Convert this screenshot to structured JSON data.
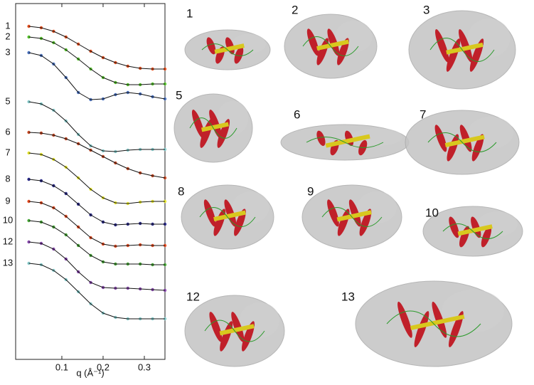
{
  "chart_data": {
    "type": "line",
    "x_label": "q (Å⁻¹)",
    "xlim": [
      -0.012,
      0.35
    ],
    "xticks": [
      0.1,
      0.2,
      0.3
    ],
    "ylim": [
      0,
      100
    ],
    "x": [
      0.02,
      0.05,
      0.08,
      0.11,
      0.14,
      0.17,
      0.2,
      0.23,
      0.26,
      0.29,
      0.32,
      0.35
    ],
    "series": [
      {
        "name": "1",
        "color": "#e8501e",
        "values": [
          93.6,
          93.2,
          92.2,
          90.6,
          88.6,
          86.6,
          84.8,
          83.4,
          82.4,
          81.8,
          81.6,
          81.6
        ]
      },
      {
        "name": "2",
        "color": "#59c72f",
        "values": [
          90.6,
          90.2,
          89,
          87,
          84.4,
          81.6,
          79.2,
          77.8,
          77.2,
          77.2,
          77.4,
          77.4
        ]
      },
      {
        "name": "3",
        "color": "#4a72c0",
        "values": [
          86.2,
          85.4,
          83,
          79.2,
          75,
          73,
          73.2,
          74.4,
          75,
          74.6,
          73.8,
          73.2
        ]
      },
      {
        "name": "5",
        "color": "#88cccc",
        "values": [
          72.4,
          71.8,
          70,
          67,
          63.2,
          60,
          58.6,
          58.4,
          58.8,
          59,
          59,
          59
        ]
      },
      {
        "name": "6",
        "color": "#c94a24",
        "values": [
          63.8,
          63.6,
          63,
          62,
          60.6,
          58.8,
          57,
          55.2,
          53.6,
          52.4,
          51.6,
          51
        ]
      },
      {
        "name": "7",
        "color": "#e8e830",
        "values": [
          58,
          57.6,
          56.2,
          54,
          51,
          47.8,
          45.4,
          44,
          43.8,
          44.2,
          44.4,
          44.4
        ]
      },
      {
        "name": "8",
        "color": "#2a2a8a",
        "values": [
          50.6,
          50.2,
          48.8,
          46.6,
          43.6,
          40.6,
          38.6,
          37.8,
          38,
          38.2,
          38,
          38
        ]
      },
      {
        "name": "9",
        "color": "#e84c20",
        "values": [
          44.4,
          44,
          42.6,
          40.2,
          37.2,
          34.2,
          32.4,
          31.8,
          32,
          32.2,
          32,
          32
        ]
      },
      {
        "name": "10",
        "color": "#4aaa3a",
        "values": [
          39,
          38.6,
          37.2,
          35,
          32,
          29.2,
          27.4,
          26.8,
          26.8,
          26.8,
          26.6,
          26.6
        ]
      },
      {
        "name": "12",
        "color": "#8a4ab0",
        "values": [
          33,
          32.6,
          31,
          28.2,
          24.6,
          21.6,
          20.2,
          20,
          20,
          19.8,
          19.6,
          19.4
        ]
      },
      {
        "name": "13",
        "color": "#88cccc",
        "values": [
          27,
          26.6,
          25,
          22.4,
          19,
          15.6,
          13,
          11.8,
          11.4,
          11.4,
          11.4,
          11.4
        ]
      }
    ]
  }
}
